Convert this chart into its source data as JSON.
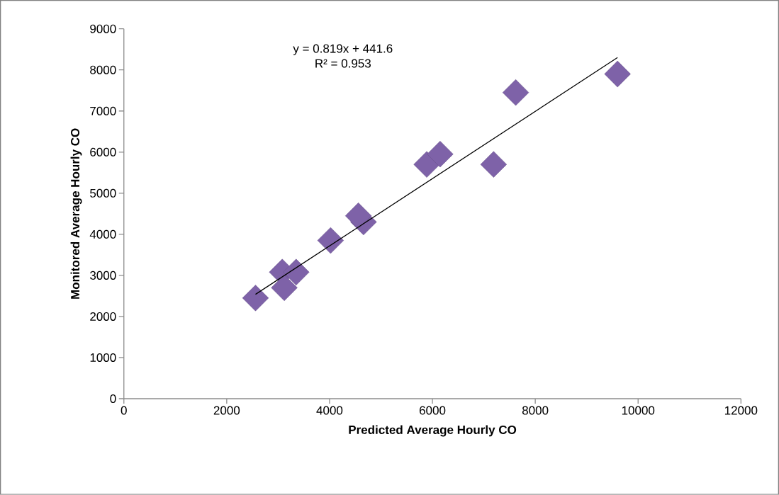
{
  "chart_data": {
    "type": "scatter",
    "xlabel": "Predicted Average Hourly CO",
    "ylabel": "Monitored Average Hourly CO",
    "annotations": [
      "y = 0.819x + 441.6",
      "R² = 0.953"
    ],
    "xlim": [
      0,
      12000
    ],
    "xticks": [
      0,
      2000,
      4000,
      6000,
      8000,
      10000,
      12000
    ],
    "ylim": [
      0,
      9000
    ],
    "yticks": [
      0,
      1000,
      2000,
      3000,
      4000,
      5000,
      6000,
      7000,
      8000,
      9000
    ],
    "grid": false,
    "series": [
      {
        "color": "#7e62a8",
        "marker": "diamond",
        "x": [
          2560,
          3080,
          3350,
          3120,
          4020,
          4660,
          4560,
          5890,
          6150,
          7190,
          7620,
          9600
        ],
        "values": [
          2450,
          3080,
          3080,
          2700,
          3850,
          4300,
          4450,
          5700,
          5950,
          5700,
          7450,
          7900
        ]
      },
      {
        "type": "line",
        "color": "#000000",
        "marker": "none",
        "x": [
          2560,
          9600
        ],
        "values": [
          2540,
          8300
        ]
      }
    ]
  }
}
